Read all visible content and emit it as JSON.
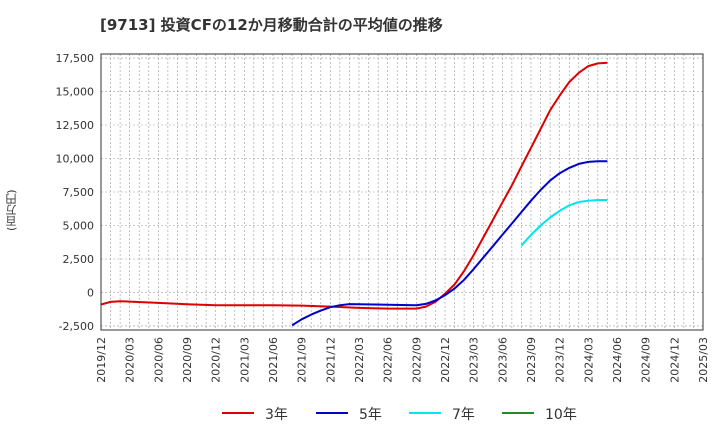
{
  "chart_data": {
    "type": "line",
    "title": "[9713]  投資CFの12か月移動合計の平均値の推移",
    "ylabel": "(百万円)",
    "xlabel": "",
    "ylim": [
      -2800,
      17800
    ],
    "yticks": [
      -2500,
      0,
      2500,
      5000,
      7500,
      10000,
      12500,
      15000,
      17500
    ],
    "ytick_labels": [
      "-2,500",
      "0",
      "2,500",
      "5,000",
      "7,500",
      "10,000",
      "12,500",
      "15,000",
      "17,500"
    ],
    "x_ticks": [
      "2019/12",
      "2020/03",
      "2020/06",
      "2020/09",
      "2020/12",
      "2021/03",
      "2021/06",
      "2021/09",
      "2021/12",
      "2022/03",
      "2022/06",
      "2022/09",
      "2022/12",
      "2023/03",
      "2023/06",
      "2023/09",
      "2023/12",
      "2024/03",
      "2024/06",
      "2024/09",
      "2024/12",
      "2025/03"
    ],
    "grid": true,
    "legend_position": "bottom",
    "series": [
      {
        "name": "3年",
        "color": "#dd0000",
        "points": [
          [
            "2019/12",
            -900
          ],
          [
            "2020/01",
            -700
          ],
          [
            "2020/02",
            -650
          ],
          [
            "2020/03",
            -680
          ],
          [
            "2020/06",
            -780
          ],
          [
            "2020/09",
            -880
          ],
          [
            "2020/12",
            -950
          ],
          [
            "2021/03",
            -960
          ],
          [
            "2021/06",
            -960
          ],
          [
            "2021/09",
            -980
          ],
          [
            "2021/12",
            -1050
          ],
          [
            "2022/03",
            -1150
          ],
          [
            "2022/06",
            -1200
          ],
          [
            "2022/09",
            -1200
          ],
          [
            "2022/10",
            -1050
          ],
          [
            "2022/11",
            -700
          ],
          [
            "2022/12",
            -100
          ],
          [
            "2023/01",
            600
          ],
          [
            "2023/02",
            1600
          ],
          [
            "2023/03",
            2800
          ],
          [
            "2023/04",
            4100
          ],
          [
            "2023/05",
            5400
          ],
          [
            "2023/06",
            6700
          ],
          [
            "2023/07",
            8000
          ],
          [
            "2023/08",
            9400
          ],
          [
            "2023/09",
            10800
          ],
          [
            "2023/10",
            12200
          ],
          [
            "2023/11",
            13600
          ],
          [
            "2023/12",
            14700
          ],
          [
            "2024/01",
            15700
          ],
          [
            "2024/02",
            16400
          ],
          [
            "2024/03",
            16900
          ],
          [
            "2024/04",
            17100
          ],
          [
            "2024/05",
            17150
          ]
        ]
      },
      {
        "name": "5年",
        "color": "#0000cc",
        "points": [
          [
            "2021/08",
            -2450
          ],
          [
            "2021/09",
            -2000
          ],
          [
            "2021/10",
            -1650
          ],
          [
            "2021/11",
            -1350
          ],
          [
            "2021/12",
            -1100
          ],
          [
            "2022/01",
            -950
          ],
          [
            "2022/02",
            -870
          ],
          [
            "2022/03",
            -880
          ],
          [
            "2022/06",
            -910
          ],
          [
            "2022/09",
            -950
          ],
          [
            "2022/10",
            -850
          ],
          [
            "2022/11",
            -600
          ],
          [
            "2022/12",
            -200
          ],
          [
            "2023/01",
            300
          ],
          [
            "2023/02",
            950
          ],
          [
            "2023/03",
            1750
          ],
          [
            "2023/04",
            2600
          ],
          [
            "2023/05",
            3450
          ],
          [
            "2023/06",
            4300
          ],
          [
            "2023/07",
            5150
          ],
          [
            "2023/08",
            6000
          ],
          [
            "2023/09",
            6850
          ],
          [
            "2023/10",
            7650
          ],
          [
            "2023/11",
            8350
          ],
          [
            "2023/12",
            8900
          ],
          [
            "2024/01",
            9300
          ],
          [
            "2024/02",
            9600
          ],
          [
            "2024/03",
            9750
          ],
          [
            "2024/04",
            9800
          ],
          [
            "2024/05",
            9800
          ]
        ]
      },
      {
        "name": "7年",
        "color": "#00e5ee",
        "points": [
          [
            "2023/08",
            3500
          ],
          [
            "2023/09",
            4300
          ],
          [
            "2023/10",
            5000
          ],
          [
            "2023/11",
            5600
          ],
          [
            "2023/12",
            6100
          ],
          [
            "2024/01",
            6500
          ],
          [
            "2024/02",
            6750
          ],
          [
            "2024/03",
            6850
          ],
          [
            "2024/04",
            6900
          ],
          [
            "2024/05",
            6900
          ]
        ]
      },
      {
        "name": "10年",
        "color": "#228b22",
        "points": []
      }
    ]
  }
}
